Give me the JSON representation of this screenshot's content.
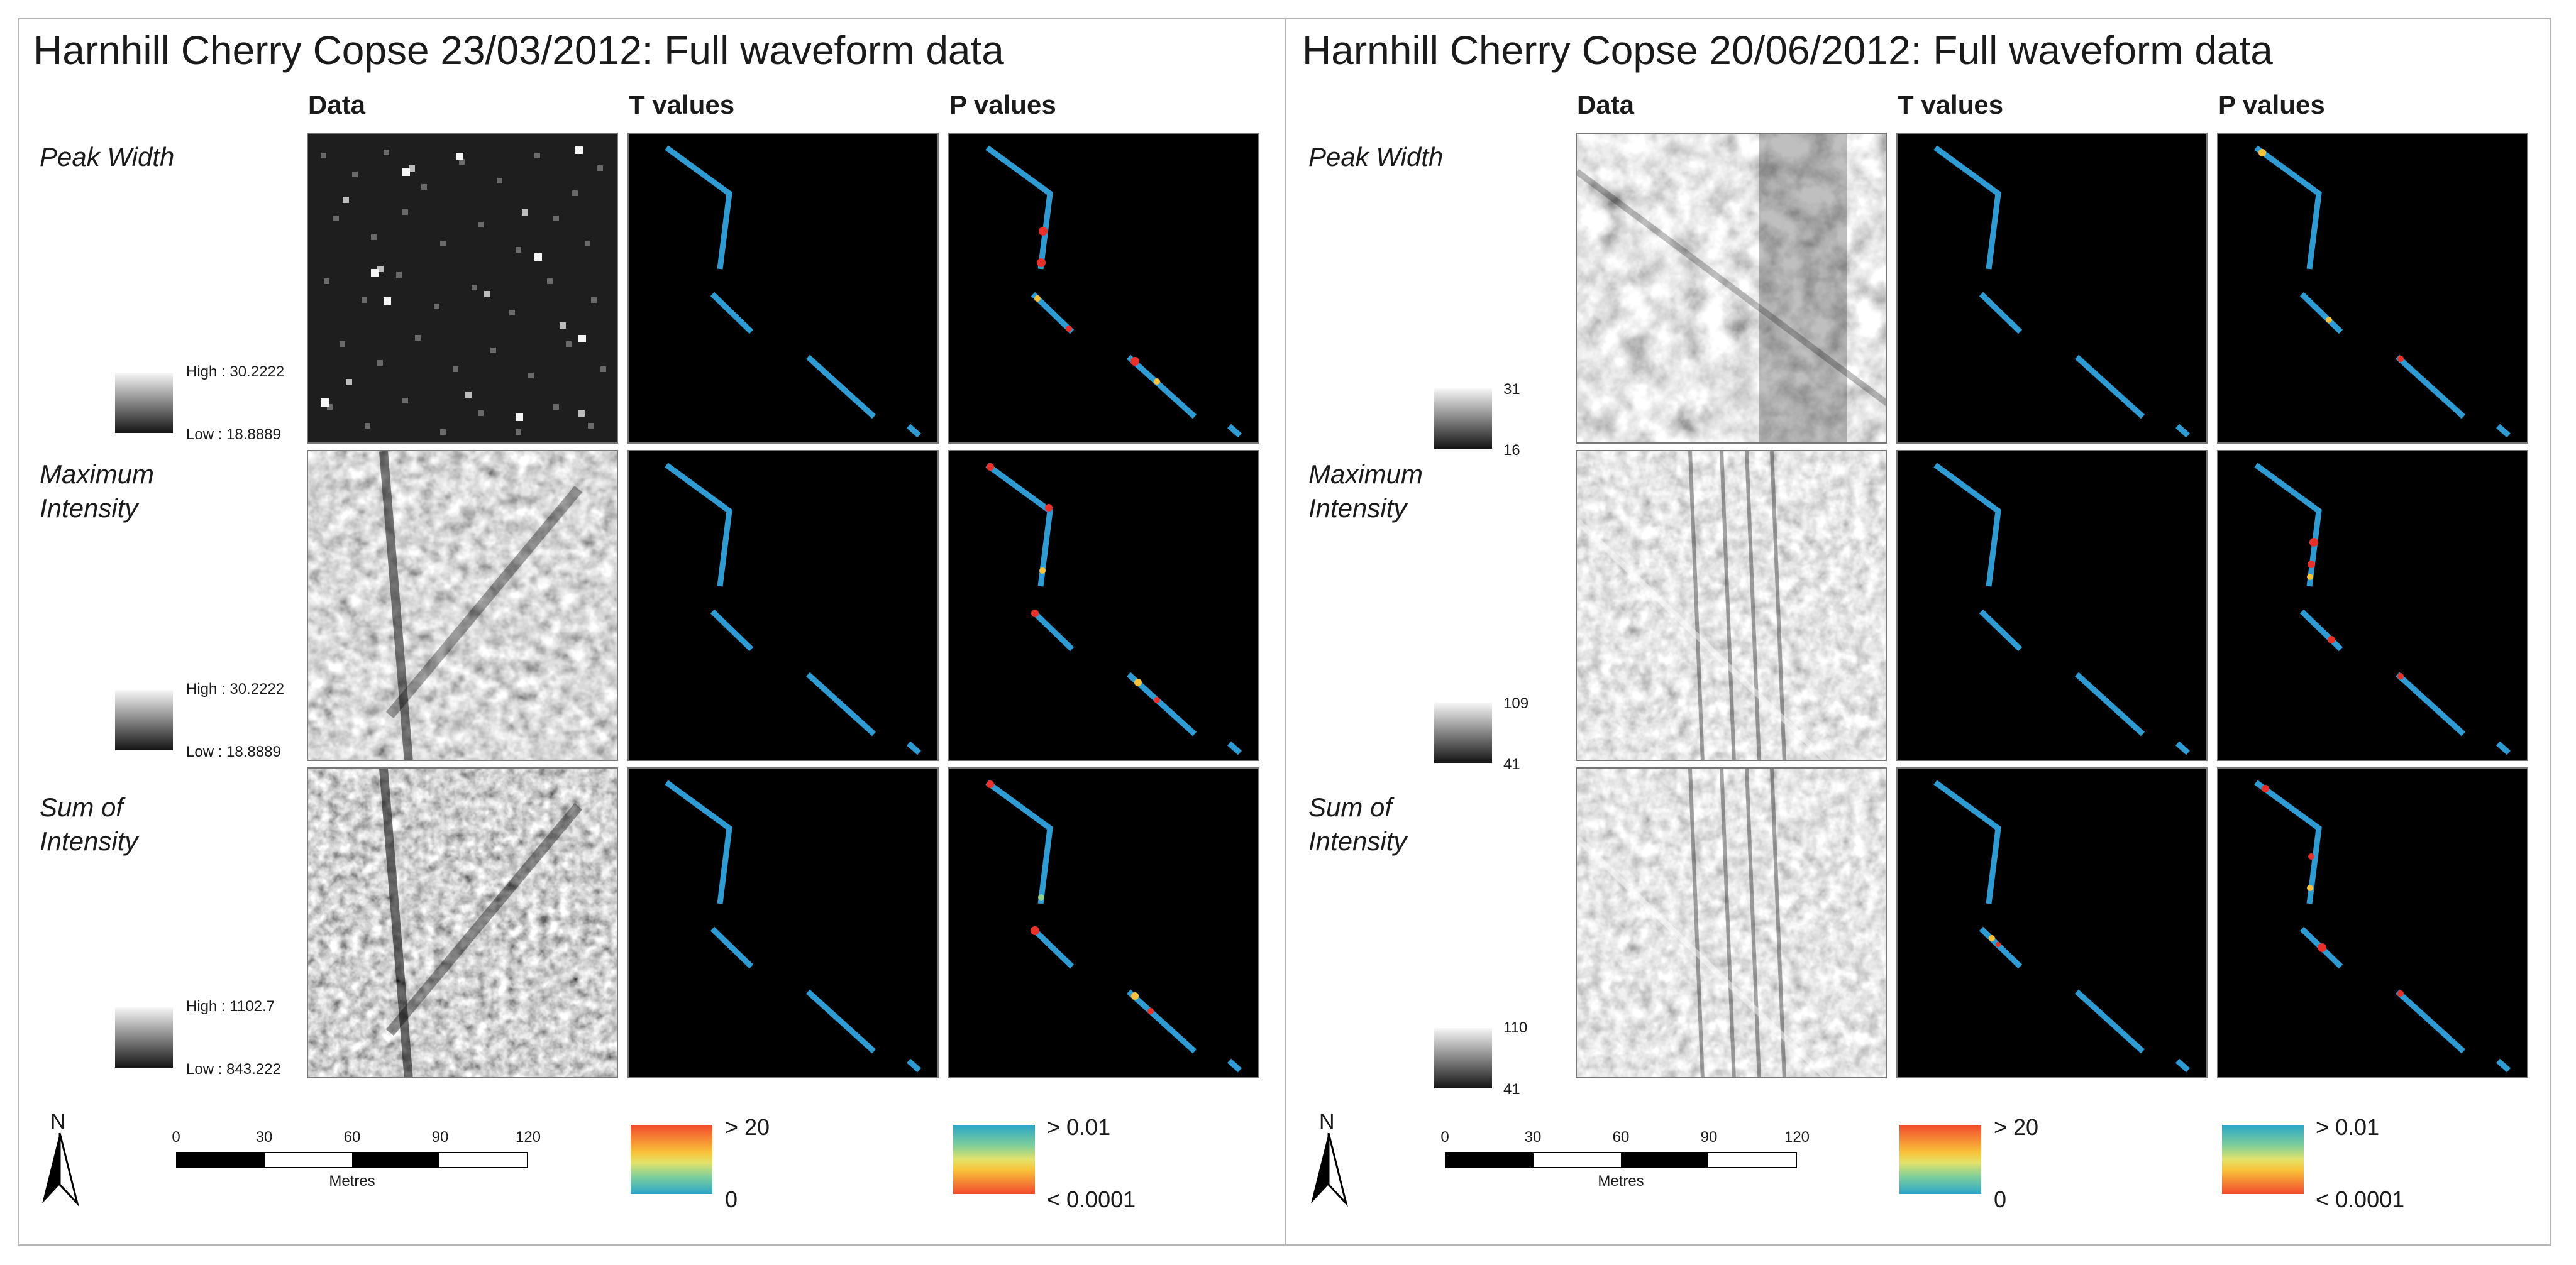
{
  "colors": {
    "line": "#2f9bd3",
    "sig_high": "#e8312a",
    "sig_mid": "#f5c23a",
    "sig_low": "#8fd08a"
  },
  "panels": [
    {
      "title": "Harnhill Cherry Copse 23/03/2012: Full waveform data",
      "columns": {
        "data": "Data",
        "t": "T values",
        "p": "P values"
      },
      "rows": [
        {
          "label": "Peak Width",
          "legend_high": "High : 30.2222",
          "legend_low": "Low : 18.8889"
        },
        {
          "label": "Maximum\nIntensity",
          "legend_high": "High : 30.2222",
          "legend_low": "Low : 18.8889"
        },
        {
          "label": "Sum of\nIntensity",
          "legend_high": "High : 1102.7",
          "legend_low": "Low : 843.222"
        }
      ],
      "north": "N",
      "scale": {
        "ticks": [
          "0",
          "30",
          "60",
          "90",
          "120"
        ],
        "unit": "Metres"
      },
      "t_legend": {
        "high": "> 20",
        "low": "0"
      },
      "p_legend": {
        "high": "> 0.01",
        "low": "< 0.0001"
      }
    },
    {
      "title": "Harnhill Cherry Copse 20/06/2012: Full waveform data",
      "columns": {
        "data": "Data",
        "t": "T values",
        "p": "P values"
      },
      "rows": [
        {
          "label": "Peak Width",
          "legend_high": "31",
          "legend_low": "16"
        },
        {
          "label": "Maximum\nIntensity",
          "legend_high": "109",
          "legend_low": "41"
        },
        {
          "label": "Sum of\nIntensity",
          "legend_high": "110",
          "legend_low": "41"
        }
      ],
      "north": "N",
      "scale": {
        "ticks": [
          "0",
          "30",
          "60",
          "90",
          "120"
        ],
        "unit": "Metres"
      },
      "t_legend": {
        "high": "> 20",
        "low": "0"
      },
      "p_legend": {
        "high": "> 0.01",
        "low": "< 0.0001"
      }
    }
  ]
}
